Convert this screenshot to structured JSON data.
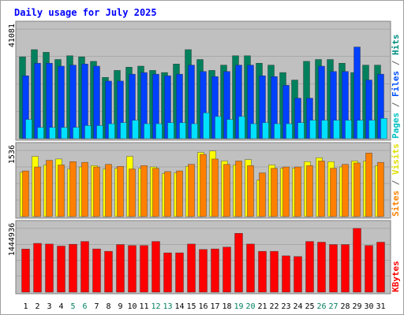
{
  "chart_data": {
    "type": "bar",
    "title": "Daily usage for July 2025",
    "categories": [
      "1",
      "2",
      "3",
      "4",
      "5",
      "6",
      "7",
      "8",
      "9",
      "10",
      "11",
      "12",
      "13",
      "14",
      "15",
      "16",
      "17",
      "18",
      "19",
      "20",
      "21",
      "22",
      "23",
      "24",
      "25",
      "26",
      "27",
      "28",
      "29",
      "30",
      "31"
    ],
    "weekend_days": [
      "5",
      "6",
      "12",
      "13",
      "19",
      "20",
      "26",
      "27"
    ],
    "panels": [
      {
        "key": "hits",
        "ymax_label": "41081",
        "ymax": 41081,
        "series": [
          {
            "name": "Hits",
            "color": "#00805c",
            "values": [
              30700,
              33400,
              32400,
              29700,
              31100,
              30700,
              29000,
              23000,
              25600,
              26800,
              27200,
              25600,
              24800,
              28000,
              33400,
              29700,
              25600,
              27600,
              31100,
              31100,
              28300,
              27600,
              24800,
              22000,
              29000,
              29700,
              29700,
              28300,
              24800,
              27600,
              27600
            ]
          },
          {
            "name": "Files",
            "color": "#0040ff",
            "values": [
              23600,
              28300,
              28300,
              27200,
              27600,
              28000,
              27200,
              21600,
              21600,
              24200,
              24800,
              24200,
              23600,
              24200,
              27600,
              25200,
              23300,
              25200,
              27600,
              27600,
              23600,
              23300,
              20000,
              15200,
              15200,
              27200,
              25200,
              25200,
              34400,
              22000,
              24200
            ]
          },
          {
            "name": "Pages",
            "color": "#00e0ff",
            "values": [
              7200,
              4200,
              4200,
              4200,
              4200,
              4900,
              4900,
              5600,
              6000,
              6900,
              5600,
              5600,
              6000,
              6000,
              5600,
              9700,
              8300,
              7200,
              8300,
              5600,
              6000,
              5600,
              5600,
              6000,
              6900,
              6900,
              6900,
              6900,
              6900,
              6900,
              7600
            ]
          }
        ]
      },
      {
        "key": "visits",
        "ymax_label": "1536",
        "ymax": 1536,
        "series": [
          {
            "name": "Visits",
            "color": "#ffff00",
            "values": [
              1029,
              1398,
              1198,
              1336,
              1106,
              1152,
              1183,
              1106,
              1121,
              1398,
              1121,
              1152,
              999,
              1014,
              1167,
              1490,
              1521,
              1290,
              1198,
              1321,
              846,
              1198,
              1121,
              1121,
              1275,
              1367,
              1275,
              1152,
              1290,
              1290,
              1182
            ]
          },
          {
            "name": "Sites",
            "color": "#ff8000",
            "values": [
              1060,
              1152,
              1306,
              1198,
              1275,
              1260,
              1152,
              1213,
              1167,
              1106,
              1183,
              1121,
              1044,
              1060,
              1213,
              1444,
              1336,
              1213,
              1290,
              1182,
              1014,
              1121,
              1152,
              1152,
              1183,
              1290,
              1121,
              1213,
              1244,
              1475,
              1259
            ]
          }
        ]
      },
      {
        "key": "kbytes",
        "ymax_label": "1444936",
        "ymax": 1444936,
        "series": [
          {
            "name": "KBytes",
            "color": "#ff0000",
            "values": [
              978000,
              1106000,
              1090000,
              1044000,
              1086000,
              1149000,
              980000,
              926000,
              1078000,
              1058000,
              1058000,
              1149000,
              891000,
              891000,
              1090000,
              969000,
              980000,
              1022000,
              1333000,
              1090000,
              926000,
              926000,
              823000,
              808000,
              1149000,
              1133000,
              1078000,
              1078000,
              1444936,
              1058000,
              1133000
            ]
          }
        ]
      }
    ],
    "legend": {
      "hits": [
        {
          "text": "Pages",
          "color": "#00c0c0"
        },
        {
          "text": " / ",
          "color": "#606060"
        },
        {
          "text": "Files",
          "color": "#0050ff"
        },
        {
          "text": " / ",
          "color": "#606060"
        },
        {
          "text": "Hits",
          "color": "#009080"
        }
      ],
      "visits": [
        {
          "text": "Sites",
          "color": "#ff8000"
        },
        {
          "text": " / ",
          "color": "#606060"
        },
        {
          "text": "Visits",
          "color": "#e0e000"
        }
      ],
      "kbytes": [
        {
          "text": "KBytes",
          "color": "#ff0000"
        }
      ]
    },
    "colors": {
      "panel_bg": "#c0c0c0",
      "frame": "#808080",
      "title": "#0000ff",
      "tick_weekday": "#000000",
      "tick_weekend": "#008060",
      "grid": "#909090"
    },
    "grid": true
  }
}
